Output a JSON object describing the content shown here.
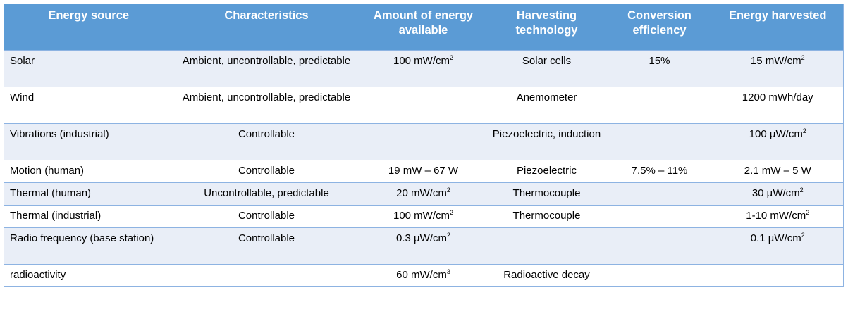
{
  "table": {
    "headers": [
      "Energy source",
      "Characteristics",
      "Amount of energy available",
      "Harvesting technology",
      "Conversion efficiency",
      "Energy harvested"
    ],
    "rows": [
      {
        "source": "Solar",
        "characteristics": "Ambient, uncontrollable, predictable",
        "amount": "100 mW/cm",
        "amount_sup": "2",
        "technology": "Solar cells",
        "efficiency": "15%",
        "harvested": "15 mW/cm",
        "harvested_sup": "2"
      },
      {
        "source": "Wind",
        "characteristics": "Ambient, uncontrollable, predictable",
        "amount": "",
        "amount_sup": "",
        "technology": "Anemometer",
        "efficiency": "",
        "harvested": "1200 mWh/day",
        "harvested_sup": ""
      },
      {
        "source": "Vibrations (industrial)",
        "characteristics": "Controllable",
        "amount": "",
        "amount_sup": "",
        "technology": "Piezoelectric, induction",
        "efficiency": "",
        "harvested": "100 µW/cm",
        "harvested_sup": "2"
      },
      {
        "source": "Motion (human)",
        "characteristics": "Controllable",
        "amount": "19 mW – 67 W",
        "amount_sup": "",
        "technology": "Piezoelectric",
        "efficiency": "7.5% – 11%",
        "harvested": "2.1 mW – 5 W",
        "harvested_sup": ""
      },
      {
        "source": "Thermal (human)",
        "characteristics": "Uncontrollable, predictable",
        "amount": "20 mW/cm",
        "amount_sup": "2",
        "technology": "Thermocouple",
        "efficiency": "",
        "harvested": "30 µW/cm",
        "harvested_sup": "2"
      },
      {
        "source": "Thermal (industrial)",
        "characteristics": "Controllable",
        "amount": "100 mW/cm",
        "amount_sup": "2",
        "technology": "Thermocouple",
        "efficiency": "",
        "harvested": "1-10 mW/cm",
        "harvested_sup": "2"
      },
      {
        "source": "Radio frequency (base station)",
        "characteristics": "Controllable",
        "amount": "0.3 µW/cm",
        "amount_sup": "2",
        "technology": "",
        "efficiency": "",
        "harvested": "0.1 µW/cm",
        "harvested_sup": "2"
      },
      {
        "source": "radioactivity",
        "characteristics": "",
        "amount": "60 mW/cm",
        "amount_sup": "3",
        "technology": "Radioactive decay",
        "efficiency": "",
        "harvested": "",
        "harvested_sup": ""
      }
    ]
  }
}
